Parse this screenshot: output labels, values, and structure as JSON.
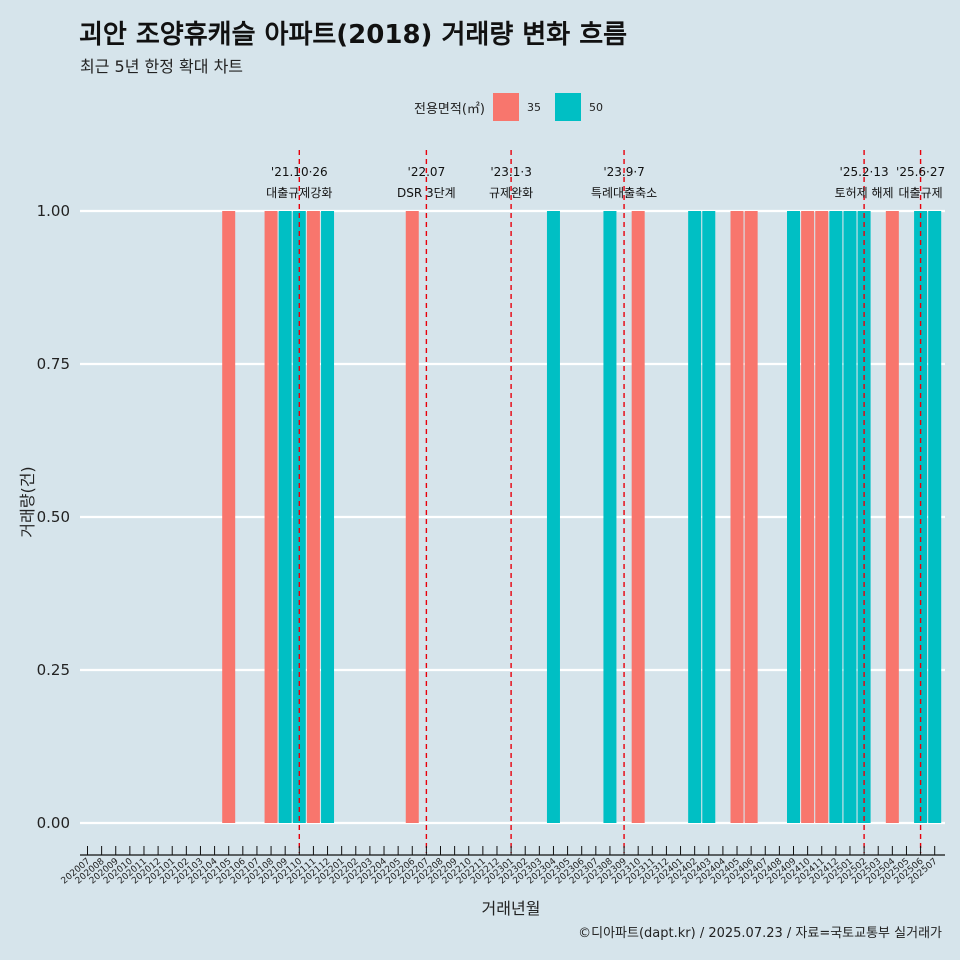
{
  "title": "괴안 조양휴캐슬 아파트(2018) 거래량 변화 흐름",
  "subtitle": "최근 5년 한정 확대 차트",
  "legend": {
    "title": "전용면적(㎡)",
    "items": [
      {
        "label": "35",
        "color": "#f8766d"
      },
      {
        "label": "50",
        "color": "#00bfc4"
      }
    ]
  },
  "caption": "©디아파트(dapt.kr) / 2025.07.23 / 자료=국토교통부 실거래가",
  "chart_data": {
    "type": "bar",
    "xlabel": "거래년월",
    "ylabel": "거래량(건)",
    "ylim": [
      0,
      1
    ],
    "y_ticks": [
      "0.00",
      "0.25",
      "0.50",
      "0.75",
      "1.00"
    ],
    "categories": [
      "202007",
      "202008",
      "202009",
      "202010",
      "202011",
      "202012",
      "202101",
      "202102",
      "202103",
      "202104",
      "202105",
      "202106",
      "202107",
      "202108",
      "202109",
      "202110",
      "202111",
      "202112",
      "202201",
      "202202",
      "202203",
      "202204",
      "202205",
      "202206",
      "202207",
      "202208",
      "202209",
      "202210",
      "202211",
      "202212",
      "202301",
      "202302",
      "202303",
      "202304",
      "202305",
      "202306",
      "202307",
      "202308",
      "202309",
      "202310",
      "202311",
      "202312",
      "202401",
      "202402",
      "202403",
      "202404",
      "202405",
      "202406",
      "202407",
      "202408",
      "202409",
      "202410",
      "202411",
      "202412",
      "202501",
      "202502",
      "202503",
      "202504",
      "202505",
      "202506",
      "202507"
    ],
    "series": [
      {
        "name": "35",
        "color": "#f8766d",
        "points": [
          {
            "x": "202105",
            "y": 1
          },
          {
            "x": "202108",
            "y": 1
          },
          {
            "x": "202111",
            "y": 1
          },
          {
            "x": "202206",
            "y": 1
          },
          {
            "x": "202310",
            "y": 1
          },
          {
            "x": "202405",
            "y": 1
          },
          {
            "x": "202406",
            "y": 1
          },
          {
            "x": "202410",
            "y": 1
          },
          {
            "x": "202411",
            "y": 1
          },
          {
            "x": "202504",
            "y": 1
          }
        ]
      },
      {
        "name": "50",
        "color": "#00bfc4",
        "points": [
          {
            "x": "202109",
            "y": 1
          },
          {
            "x": "202110",
            "y": 1
          },
          {
            "x": "202112",
            "y": 1
          },
          {
            "x": "202304",
            "y": 1
          },
          {
            "x": "202308",
            "y": 1
          },
          {
            "x": "202402",
            "y": 1
          },
          {
            "x": "202403",
            "y": 1
          },
          {
            "x": "202409",
            "y": 1
          },
          {
            "x": "202412",
            "y": 1
          },
          {
            "x": "202501",
            "y": 1
          },
          {
            "x": "202502",
            "y": 1
          },
          {
            "x": "202506",
            "y": 1
          },
          {
            "x": "202507",
            "y": 1
          }
        ]
      }
    ],
    "events": [
      {
        "date": "202110",
        "line1": "'21.10·26",
        "line2": "대출규제강화"
      },
      {
        "date": "202207",
        "line1": "'22.07",
        "line2": "DSR 3단계"
      },
      {
        "date": "202301",
        "line1": "'23.1·3",
        "line2": "규제완화"
      },
      {
        "date": "202309",
        "line1": "'23.9·7",
        "line2": "특례대출축소"
      },
      {
        "date": "202502",
        "line1": "'25.2·13",
        "line2": "토허제 해제"
      },
      {
        "date": "202506",
        "line1": "'25.6·27",
        "line2": "대출규제"
      }
    ]
  }
}
